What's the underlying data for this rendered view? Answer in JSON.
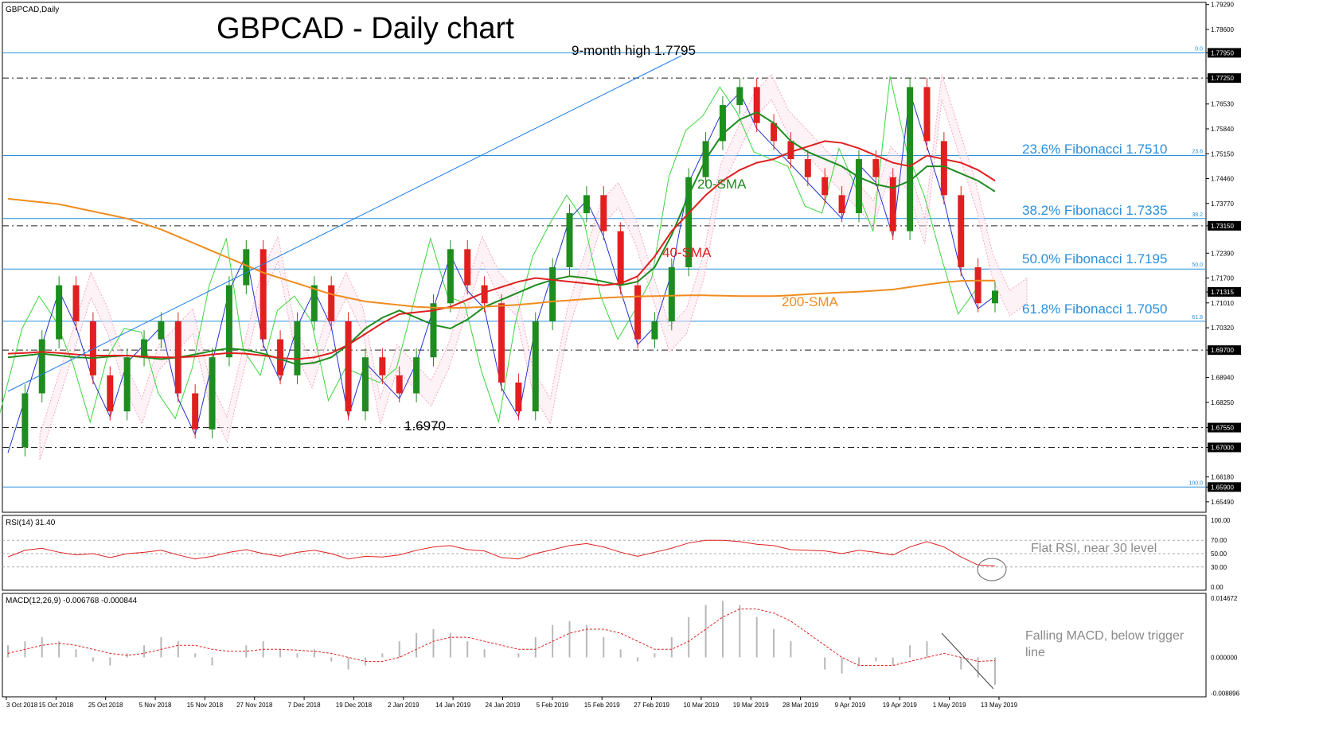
{
  "chart_data": {
    "type": "line",
    "symbol_label": "GBPCAD,Daily",
    "title": "GBPCAD - Daily chart",
    "price_range": [
      1.652,
      1.7935
    ],
    "price_axis_labels": [
      "1.79290",
      "1.78600",
      "1.77950",
      "1.77250",
      "1.76530",
      "1.75840",
      "1.75150",
      "1.74460",
      "1.73770",
      "1.73150",
      "1.72390",
      "1.71700",
      "1.71315",
      "1.71010",
      "1.70320",
      "1.69700",
      "1.68940",
      "1.68250",
      "1.67550",
      "1.67000",
      "1.66180",
      "1.65900",
      "1.65490"
    ],
    "highlighted_levels": [
      "1.77950",
      "1.77250",
      "1.73150",
      "1.71315",
      "1.69700",
      "1.67550",
      "1.67000",
      "1.65900"
    ],
    "horizontal_levels": [
      {
        "price": 1.7795,
        "style": "blue-solid",
        "tag": "0.0"
      },
      {
        "price": 1.7725,
        "style": "black-dashdot"
      },
      {
        "price": 1.751,
        "style": "blue-solid",
        "tag": "23.6"
      },
      {
        "price": 1.7335,
        "style": "blue-solid",
        "tag": "38.2"
      },
      {
        "price": 1.7315,
        "style": "black-dashdot"
      },
      {
        "price": 1.7195,
        "style": "blue-solid",
        "tag": "50.0"
      },
      {
        "price": 1.705,
        "style": "blue-solid",
        "tag": "61.8"
      },
      {
        "price": 1.697,
        "style": "black-dashdot"
      },
      {
        "price": 1.6755,
        "style": "black-dashdot"
      },
      {
        "price": 1.67,
        "style": "black-dashdot"
      },
      {
        "price": 1.659,
        "style": "blue-solid",
        "tag": "100.0"
      }
    ],
    "x_labels": [
      "3 Oct 2018",
      "15 Oct 2018",
      "25 Oct 2018",
      "5 Nov 2018",
      "15 Nov 2018",
      "27 Nov 2018",
      "7 Dec 2018",
      "19 Dec 2018",
      "2 Jan 2019",
      "14 Jan 2019",
      "24 Jan 2019",
      "5 Feb 2019",
      "15 Feb 2019",
      "27 Feb 2019",
      "10 Mar 2019",
      "19 Mar 2019",
      "28 Mar 2019",
      "9 Apr 2019",
      "19 Apr 2019",
      "1 May 2019",
      "13 May 2019"
    ],
    "annotations": {
      "high": "9-month high 1.7795",
      "low": "1.6970",
      "fib236": "23.6% Fibonacci 1.7510",
      "fib382": "38.2% Fibonacci 1.7335",
      "fib500": "50.0% Fibonacci 1.7195",
      "fib618": "61.8% Fibonacci 1.7050",
      "sma20": "20-SMA",
      "sma40": "40-SMA",
      "sma200": "200-SMA",
      "rsi_note": "Flat RSI, near 30 level",
      "macd_note_1": "Falling MACD, below trigger",
      "macd_note_2": "line"
    },
    "series": [
      {
        "name": "20-SMA",
        "color": "#1e8c1e",
        "values": [
          1.695,
          1.6955,
          1.696,
          1.6955,
          1.695,
          1.6948,
          1.6952,
          1.6955,
          1.695,
          1.6945,
          1.695,
          1.6958,
          1.6968,
          1.6975,
          1.697,
          1.696,
          1.6945,
          1.693,
          1.6935,
          1.695,
          1.6985,
          1.703,
          1.706,
          1.708,
          1.706,
          1.704,
          1.703,
          1.7055,
          1.709,
          1.711,
          1.713,
          1.715,
          1.7165,
          1.7175,
          1.717,
          1.716,
          1.715,
          1.716,
          1.72,
          1.729,
          1.74,
          1.75,
          1.757,
          1.761,
          1.763,
          1.76,
          1.755,
          1.752,
          1.75,
          1.748,
          1.745,
          1.743,
          1.742,
          1.744,
          1.748,
          1.748,
          1.746,
          1.744,
          1.741
        ]
      },
      {
        "name": "40-SMA",
        "color": "#e02020",
        "values": [
          1.696,
          1.6962,
          1.6965,
          1.6962,
          1.6958,
          1.6955,
          1.6955,
          1.6955,
          1.6952,
          1.695,
          1.695,
          1.6952,
          1.6958,
          1.6962,
          1.696,
          1.6955,
          1.6948,
          1.6945,
          1.695,
          1.6962,
          1.6985,
          1.7015,
          1.7045,
          1.707,
          1.7075,
          1.708,
          1.709,
          1.711,
          1.713,
          1.7145,
          1.716,
          1.717,
          1.7165,
          1.716,
          1.7155,
          1.715,
          1.7155,
          1.7175,
          1.723,
          1.73,
          1.735,
          1.74,
          1.744,
          1.747,
          1.749,
          1.75,
          1.752,
          1.7535,
          1.755,
          1.7545,
          1.753,
          1.751,
          1.749,
          1.748,
          1.751,
          1.75,
          1.749,
          1.747,
          1.744
        ]
      },
      {
        "name": "200-SMA",
        "color": "#f08c1e",
        "values": [
          1.739,
          1.7385,
          1.738,
          1.7375,
          1.7365,
          1.7355,
          1.7345,
          1.7335,
          1.732,
          1.7305,
          1.7285,
          1.7265,
          1.7245,
          1.7225,
          1.7205,
          1.7185,
          1.717,
          1.7155,
          1.714,
          1.7125,
          1.7115,
          1.7105,
          1.71,
          1.7095,
          1.709,
          1.7088,
          1.7087,
          1.7088,
          1.709,
          1.7093,
          1.7096,
          1.71,
          1.7105,
          1.7108,
          1.7112,
          1.7115,
          1.7117,
          1.7119,
          1.712,
          1.7121,
          1.7122,
          1.7122,
          1.7121,
          1.712,
          1.712,
          1.712,
          1.7122,
          1.7125,
          1.7128,
          1.713,
          1.7132,
          1.7135,
          1.7138,
          1.7145,
          1.7152,
          1.7158,
          1.7162,
          1.7163,
          1.7163
        ]
      },
      {
        "name": "Close",
        "color": "#1e8c1e",
        "values": [
          1.67,
          1.685,
          1.7,
          1.715,
          1.705,
          1.69,
          1.68,
          1.695,
          1.7,
          1.705,
          1.685,
          1.675,
          1.695,
          1.715,
          1.725,
          1.7,
          1.69,
          1.705,
          1.715,
          1.705,
          1.68,
          1.695,
          1.69,
          1.685,
          1.695,
          1.71,
          1.725,
          1.715,
          1.71,
          1.688,
          1.68,
          1.705,
          1.72,
          1.735,
          1.74,
          1.73,
          1.715,
          1.7,
          1.705,
          1.72,
          1.745,
          1.755,
          1.765,
          1.77,
          1.76,
          1.755,
          1.75,
          1.745,
          1.74,
          1.735,
          1.75,
          1.745,
          1.73,
          1.77,
          1.755,
          1.74,
          1.72,
          1.71,
          1.7135
        ]
      }
    ],
    "rsi": {
      "label": "RSI(14) 31.40",
      "levels": [
        70,
        50,
        30
      ],
      "axis_labels": [
        "100.00",
        "70.00",
        "50.00",
        "30.00",
        "0.00"
      ],
      "values": [
        45,
        55,
        58,
        52,
        48,
        50,
        44,
        50,
        52,
        55,
        48,
        42,
        46,
        52,
        56,
        50,
        46,
        52,
        55,
        50,
        42,
        46,
        45,
        48,
        55,
        60,
        62,
        56,
        54,
        44,
        42,
        50,
        56,
        62,
        65,
        60,
        52,
        46,
        52,
        58,
        66,
        70,
        70,
        68,
        64,
        62,
        56,
        55,
        54,
        50,
        55,
        52,
        48,
        60,
        68,
        60,
        45,
        33,
        31.4
      ]
    },
    "macd": {
      "label": "MACD(12,26,9) -0.006768 -0.000844",
      "axis_labels": [
        "0.014672",
        "0.000000",
        "-0.008896"
      ],
      "range": [
        -0.009,
        0.0147
      ],
      "hist": [
        0.003,
        0.004,
        0.005,
        0.004,
        0.002,
        -0.001,
        -0.002,
        0.001,
        0.003,
        0.005,
        0.004,
        0.001,
        -0.002,
        0.0,
        0.003,
        0.004,
        0.002,
        0.001,
        0.002,
        -0.001,
        -0.003,
        -0.002,
        0.001,
        0.004,
        0.006,
        0.007,
        0.006,
        0.004,
        0.002,
        0.0,
        0.001,
        0.005,
        0.008,
        0.009,
        0.008,
        0.005,
        0.002,
        -0.001,
        0.001,
        0.005,
        0.01,
        0.013,
        0.014,
        0.013,
        0.01,
        0.007,
        0.004,
        0.0,
        -0.003,
        -0.004,
        -0.002,
        -0.001,
        -0.002,
        0.003,
        0.004,
        0.0,
        -0.003,
        -0.005,
        -0.0068
      ],
      "signal": [
        0.001,
        0.002,
        0.003,
        0.0035,
        0.003,
        0.002,
        0.001,
        0.0005,
        0.001,
        0.002,
        0.003,
        0.003,
        0.002,
        0.0015,
        0.0015,
        0.002,
        0.002,
        0.0018,
        0.0015,
        0.001,
        0.0,
        -0.001,
        -0.001,
        0.0,
        0.002,
        0.004,
        0.005,
        0.005,
        0.004,
        0.003,
        0.002,
        0.002,
        0.004,
        0.006,
        0.007,
        0.007,
        0.006,
        0.004,
        0.002,
        0.002,
        0.004,
        0.007,
        0.01,
        0.012,
        0.012,
        0.011,
        0.009,
        0.006,
        0.003,
        0.0,
        -0.002,
        -0.002,
        -0.002,
        -0.001,
        0.0,
        0.001,
        0.0,
        -0.001,
        -0.0008
      ]
    }
  }
}
